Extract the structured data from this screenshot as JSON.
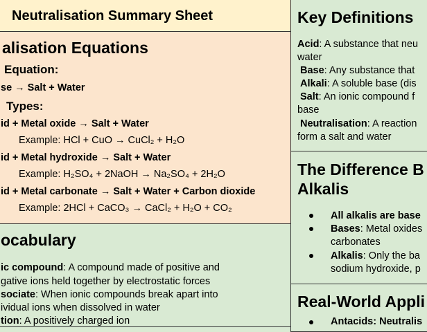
{
  "colors": {
    "title_bg": "#fff2cc",
    "equations_bg": "#fce5cd",
    "green_bg": "#d9ead3",
    "border": "#333333"
  },
  "title": "Neutralisation Summary Sheet",
  "equations": {
    "heading": "alisation Equations",
    "general_label": "Equation:",
    "general": "se → Salt + Water",
    "types_label": "Types:",
    "types": [
      {
        "rule": "id + Metal oxide → Salt + Water",
        "example": "Example: HCl + CuO → CuCl₂ + H₂O"
      },
      {
        "rule": "id + Metal hydroxide → Salt + Water",
        "example": "Example: H₂SO₄ + 2NaOH → Na₂SO₄ + 2H₂O"
      },
      {
        "rule": "id + Metal carbonate → Salt + Water + Carbon dioxide",
        "example": "Example: 2HCl + CaCO₃ → CaCl₂ + H₂O + CO₂"
      }
    ]
  },
  "vocabulary": {
    "heading": "ocabulary",
    "lines": [
      {
        "term": "ic compound",
        "text": ": A compound made of positive and"
      },
      {
        "term": "",
        "text": "gative ions held together by electrostatic forces"
      },
      {
        "term": "sociate",
        "text": ": When ionic compounds break apart into"
      },
      {
        "term": "",
        "text": "ividual ions when dissolved in water"
      },
      {
        "term": "tion",
        "text": ": A positively charged ion"
      }
    ]
  },
  "definitions": {
    "heading": "Key Definitions",
    "lines": [
      {
        "term": "Acid",
        "text": ": A substance that neu"
      },
      {
        "term": "",
        "text": "water"
      },
      {
        "term": "Base",
        "text": ": Any substance that"
      },
      {
        "term": "Alkali",
        "text": ": A soluble base (dis"
      },
      {
        "term": "Salt",
        "text": ": An ionic compound f"
      },
      {
        "term": "",
        "text": "base"
      },
      {
        "term": "Neutralisation",
        "text": ": A reaction"
      },
      {
        "term": "",
        "text": "form a salt and water"
      }
    ]
  },
  "difference": {
    "heading_line1": "The Difference B",
    "heading_line2": "Alkalis",
    "lines": [
      {
        "term": "All alkalis are base",
        "text": ""
      },
      {
        "term": "Bases",
        "text": ": Metal oxides"
      },
      {
        "term": "",
        "text": "carbonates"
      },
      {
        "term": "Alkalis",
        "text": ": Only the ba"
      },
      {
        "term": "",
        "text": "sodium hydroxide, p"
      }
    ]
  },
  "applications": {
    "heading": "Real-World Appli",
    "first_item": "Antacids: Neutralis"
  }
}
